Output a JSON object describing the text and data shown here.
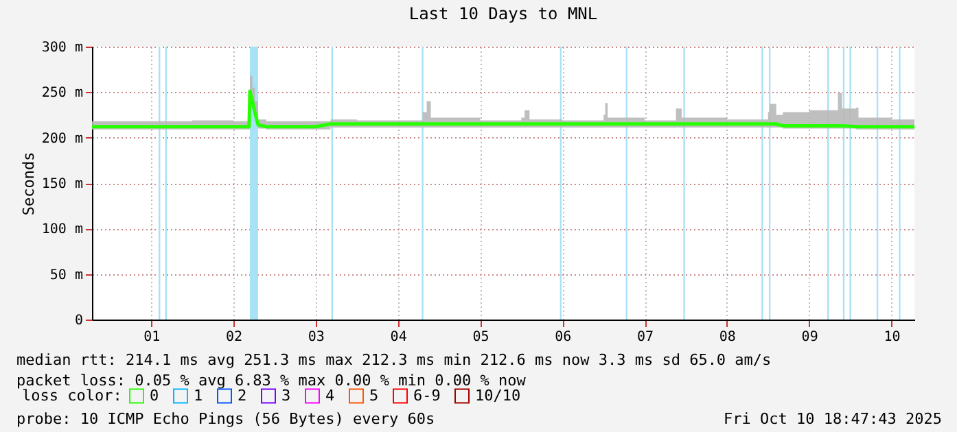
{
  "chart_data": {
    "type": "line",
    "title": "Last 10 Days to MNL",
    "ylabel": "Seconds",
    "xlim": [
      0.78,
      10.78
    ],
    "xticks": [
      {
        "value": 1.5,
        "label": "01"
      },
      {
        "value": 2.5,
        "label": "02"
      },
      {
        "value": 3.5,
        "label": "03"
      },
      {
        "value": 4.5,
        "label": "04"
      },
      {
        "value": 5.5,
        "label": "05"
      },
      {
        "value": 6.5,
        "label": "06"
      },
      {
        "value": 7.5,
        "label": "07"
      },
      {
        "value": 8.5,
        "label": "08"
      },
      {
        "value": 9.5,
        "label": "09"
      },
      {
        "value": 10.5,
        "label": "10"
      }
    ],
    "ylim": [
      0,
      300
    ],
    "yticks": [
      {
        "value": 0,
        "label": "0"
      },
      {
        "value": 50,
        "label": "50 m"
      },
      {
        "value": 100,
        "label": "100 m"
      },
      {
        "value": 150,
        "label": "150 m"
      },
      {
        "value": 200,
        "label": "200 m"
      },
      {
        "value": 250,
        "label": "250 m"
      },
      {
        "value": 300,
        "label": "300 m"
      }
    ],
    "grid": true,
    "marker": "none",
    "line_style": "solid",
    "legend": "bottom",
    "legend_title": "loss color:",
    "series": [
      {
        "name": "0",
        "color": "#26ff00",
        "x": [
          0.78,
          1.5,
          2.0,
          2.5,
          2.69,
          2.7,
          2.73,
          2.76,
          2.8,
          2.9,
          3.5,
          3.68,
          4.0,
          4.5,
          4.8,
          4.85,
          4.9,
          5.5,
          6.0,
          6.04,
          6.1,
          6.5,
          7.0,
          7.02,
          7.05,
          7.5,
          7.88,
          7.95,
          8.5,
          9.0,
          9.02,
          9.1,
          9.18,
          9.5,
          9.85,
          9.9,
          10.07,
          10.1,
          10.5,
          10.78
        ],
        "values": [
          212,
          212,
          212,
          212,
          212,
          251,
          240,
          228,
          214,
          212,
          212,
          215,
          215,
          215,
          215,
          215,
          215,
          215,
          215,
          215,
          215,
          215,
          215,
          215,
          215,
          215,
          215,
          215,
          215,
          215,
          215,
          215,
          213,
          213,
          213,
          213,
          212,
          212,
          212,
          212
        ],
        "lower": [
          209,
          209,
          209,
          209,
          209,
          245,
          232,
          222,
          210,
          209,
          209,
          211,
          211,
          211,
          211,
          211,
          211,
          211,
          211,
          211,
          211,
          211,
          211,
          211,
          211,
          211,
          211,
          211,
          211,
          211,
          211,
          211,
          210,
          210,
          210,
          210,
          209,
          209,
          209,
          209
        ],
        "upper": [
          218,
          218,
          219,
          218,
          220,
          268,
          255,
          240,
          220,
          218,
          218,
          220,
          219,
          219,
          228,
          240,
          222,
          219,
          222,
          230,
          220,
          219,
          225,
          238,
          222,
          219,
          232,
          222,
          220,
          228,
          237,
          225,
          228,
          230,
          249,
          232,
          233,
          222,
          220,
          220
        ]
      },
      {
        "name": "1",
        "color": "#00b8ff"
      },
      {
        "name": "2",
        "color": "#0059ff"
      },
      {
        "name": "3",
        "color": "#7e00ff"
      },
      {
        "name": "4",
        "color": "#ff00ff"
      },
      {
        "name": "5",
        "color": "#ff5500"
      },
      {
        "name": "6-9",
        "color": "#ff0000"
      },
      {
        "name": "10/10",
        "color": "#a10000"
      }
    ],
    "bands": [
      {
        "axis": "x",
        "from": 1.59,
        "to": 1.61,
        "color": "#a8e2f6"
      },
      {
        "axis": "x",
        "from": 1.67,
        "to": 1.69,
        "color": "#a8e2f6"
      },
      {
        "axis": "x",
        "from": 2.7,
        "to": 2.8,
        "color": "#a8e2f6"
      },
      {
        "axis": "x",
        "from": 3.69,
        "to": 3.71,
        "color": "#a8e2f6"
      },
      {
        "axis": "x",
        "from": 4.79,
        "to": 4.81,
        "color": "#a8e2f6"
      },
      {
        "axis": "x",
        "from": 6.47,
        "to": 6.49,
        "color": "#a8e2f6"
      },
      {
        "axis": "x",
        "from": 7.27,
        "to": 7.29,
        "color": "#a8e2f6"
      },
      {
        "axis": "x",
        "from": 7.97,
        "to": 7.99,
        "color": "#a8e2f6"
      },
      {
        "axis": "x",
        "from": 8.92,
        "to": 8.94,
        "color": "#a8e2f6"
      },
      {
        "axis": "x",
        "from": 9.01,
        "to": 9.03,
        "color": "#a8e2f6"
      },
      {
        "axis": "x",
        "from": 9.72,
        "to": 9.74,
        "color": "#a8e2f6"
      },
      {
        "axis": "x",
        "from": 9.91,
        "to": 9.93,
        "color": "#a8e2f6"
      },
      {
        "axis": "x",
        "from": 9.99,
        "to": 10.01,
        "color": "#a8e2f6"
      },
      {
        "axis": "x",
        "from": 10.32,
        "to": 10.34,
        "color": "#a8e2f6"
      },
      {
        "axis": "x",
        "from": 10.59,
        "to": 10.61,
        "color": "#a8e2f6"
      }
    ],
    "annotations": [
      "median rtt:  214.1 ms avg  251.3 ms max  212.3 ms min  212.6 ms now  3.3 ms sd  65.0   am/s",
      "packet loss: 0.05 % avg  6.83 % max  0.00 % min  0.00 % now",
      "probe:       10 ICMP Echo Pings (56 Bytes) every 60s",
      "Fri Oct 10 18:47:43 2025"
    ]
  }
}
